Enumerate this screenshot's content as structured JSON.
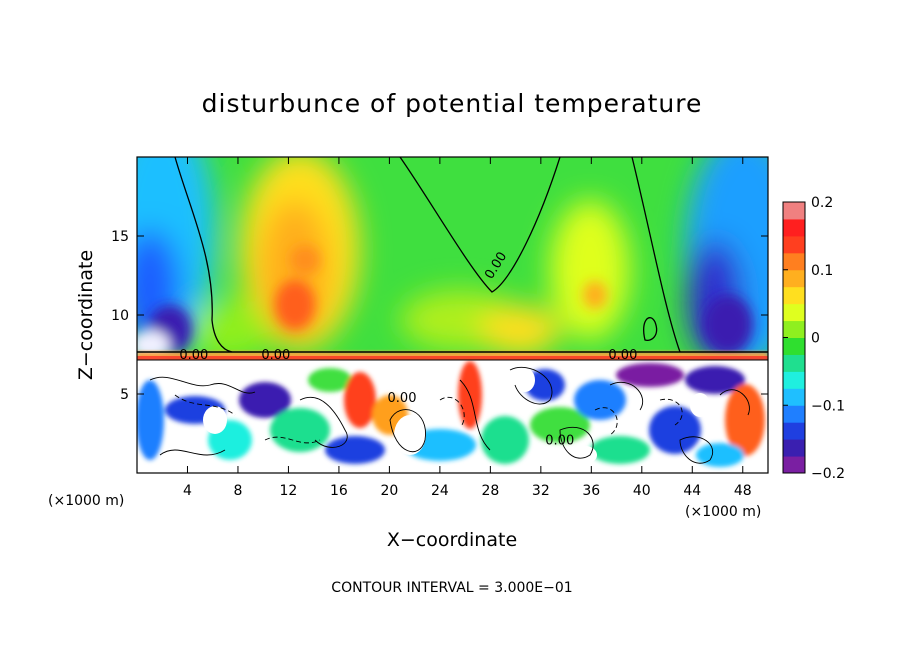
{
  "chart_data": {
    "type": "heatmap",
    "title": "disturbunce of potential temperature",
    "xlabel": "X−coordinate",
    "ylabel": "Z−coordinate",
    "x_unit_left": "(×1000 m)",
    "x_unit_right": "(×1000 m)",
    "footer": "CONTOUR INTERVAL = 3.000E−01",
    "xlim": [
      0,
      50
    ],
    "ylim": [
      0,
      20
    ],
    "x_ticks": [
      {
        "value": 4,
        "label": "4"
      },
      {
        "value": 8,
        "label": "8"
      },
      {
        "value": 12,
        "label": "12"
      },
      {
        "value": 16,
        "label": "16"
      },
      {
        "value": 20,
        "label": "20"
      },
      {
        "value": 24,
        "label": "24"
      },
      {
        "value": 28,
        "label": "28"
      },
      {
        "value": 32,
        "label": "32"
      },
      {
        "value": 36,
        "label": "36"
      },
      {
        "value": 40,
        "label": "40"
      },
      {
        "value": 44,
        "label": "44"
      },
      {
        "value": 48,
        "label": "48"
      }
    ],
    "y_ticks": [
      {
        "value": 5,
        "label": "5"
      },
      {
        "value": 10,
        "label": "10"
      },
      {
        "value": 15,
        "label": "15"
      }
    ],
    "colorbar": {
      "min": -0.2,
      "max": 0.2,
      "ticks": [
        {
          "value": 0.2,
          "label": "0.2"
        },
        {
          "value": 0.1,
          "label": "0.1"
        },
        {
          "value": 0,
          "label": "0"
        },
        {
          "value": -0.1,
          "label": "−0.1"
        },
        {
          "value": -0.2,
          "label": "−0.2"
        }
      ],
      "colors": [
        "#7a1fa2",
        "#3a1fb0",
        "#1f3fe0",
        "#1f7fff",
        "#1fbfff",
        "#1fefdf",
        "#1fdf8f",
        "#2fdf2f",
        "#8fef1f",
        "#dfff1f",
        "#ffdf1f",
        "#ffaf1f",
        "#ff7f1f",
        "#ff3f1f",
        "#ff1f1f",
        "#f08080"
      ]
    },
    "contour_labels": [
      {
        "text": "0.00",
        "x": 28.7,
        "y": 13.0
      },
      {
        "text": "0.00",
        "x": 4.5,
        "y": 7.2
      },
      {
        "text": "0.00",
        "x": 11.0,
        "y": 7.2
      },
      {
        "text": "0.00",
        "x": 38.5,
        "y": 7.2
      },
      {
        "text": "0.00",
        "x": 21.0,
        "y": 4.5
      },
      {
        "text": "0.00",
        "x": 33.5,
        "y": 1.8
      }
    ]
  }
}
